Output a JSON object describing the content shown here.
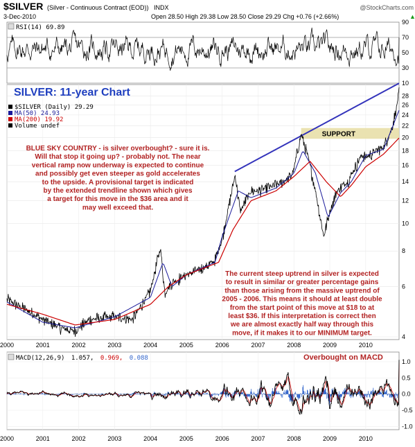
{
  "header": {
    "symbol": "$SILVER",
    "description": "(Silver - Continuous Contract (EOD))",
    "exchange": "INDX",
    "watermark": "@StockCharts.com",
    "date": "3-Dec-2010",
    "ohlc": "Open 28.50  High 29.38  Low 28.50  Close 29.29  Chg +0.76 (+2.66%)",
    "ohlc_arrow": "▲"
  },
  "rsi_panel": {
    "label": "RSI(14) 69.89",
    "ticks": [
      "90",
      "70",
      "50",
      "30",
      "10"
    ]
  },
  "main_panel": {
    "big_title": "SILVER: 11-year Chart",
    "legend": [
      {
        "text": "$SILVER (Daily) 29.29",
        "color": "#000000"
      },
      {
        "text": "MA(50) 24.93",
        "color": "#1a1a9a"
      },
      {
        "text": "MA(200) 19.92",
        "color": "#cc0000"
      },
      {
        "text": "Volume undef",
        "color": "#000000"
      }
    ],
    "ticks": [
      "28",
      "26",
      "24",
      "22",
      "20",
      "18",
      "16",
      "14",
      "12",
      "10",
      "8",
      "6",
      "4"
    ],
    "support_label": "SUPPORT",
    "annotation_top": [
      "BLUE SKY COUNTRY - is silver overbought? - sure it is.",
      "Will that stop it going up? - probably not. The near",
      "vertical ramp now underway is expected to continue",
      "and possibly get even steeper as gold accelerates",
      "to the upside. A provisional target is indicated",
      "by the extended trendline shown which gives",
      "a target for this move in the $36 area and it",
      "may well exceed that."
    ],
    "annotation_bottom": [
      "The current steep uptrend in silver is expected",
      "to result in similar or greater percentage gains",
      "than those arising from the massive uptrend of",
      "2005 - 2006. This means it should at least double",
      "from the start point of this move at $18 to at",
      "least $36. If this interpretation is correct then",
      "we are almost exactly half way through this",
      "move, if it makes it to our MINIMUM target."
    ],
    "x_labels": [
      "2000",
      "2001",
      "2002",
      "2003",
      "2004",
      "2005",
      "2006",
      "2007",
      "2008",
      "2009",
      "2010"
    ]
  },
  "macd_panel": {
    "label_prefix": "MACD(12,26,9)",
    "macd_value": "1.057,",
    "signal_value": "0.969,",
    "hist_value": "0.088",
    "note": "Overbought on MACD",
    "ticks": [
      "1.0",
      "0.5",
      "0.0",
      "-0.5",
      "-1.0"
    ],
    "x_labels": [
      "2000",
      "2001",
      "2002",
      "2003",
      "2004",
      "2005",
      "2006",
      "2007",
      "2008",
      "2009",
      "2010"
    ]
  },
  "colors": {
    "price": "#000000",
    "ma50": "#1a1a9a",
    "ma200": "#cc0000",
    "trendline": "#3333bb",
    "annotation": "#b22222",
    "support_band": "#e8dfa8",
    "title_blue": "#1f3fbf",
    "macd_signal": "#cc0000",
    "macd_hist": "#3366cc"
  },
  "chart_data": {
    "type": "line",
    "title": "SILVER: 11-year Chart",
    "xlabel": "",
    "ylabel": "",
    "ylim": [
      4,
      30
    ],
    "y_scale": "log",
    "x_range": [
      2000.0,
      2010.93
    ],
    "grid": true,
    "legend_placement": "top-left",
    "price_series": {
      "name": "$SILVER (Daily) 29.29",
      "x": [
        2000.0,
        2000.5,
        2001.0,
        2001.5,
        2001.9,
        2002.3,
        2003.0,
        2003.5,
        2004.0,
        2004.28,
        2004.4,
        2004.6,
        2005.0,
        2005.5,
        2005.8,
        2006.0,
        2006.36,
        2006.5,
        2006.8,
        2007.0,
        2007.5,
        2007.9,
        2008.0,
        2008.2,
        2008.4,
        2008.6,
        2008.83,
        2009.0,
        2009.2,
        2009.5,
        2009.9,
        2010.0,
        2010.3,
        2010.5,
        2010.7,
        2010.85,
        2010.93
      ],
      "values": [
        5.4,
        5.0,
        4.6,
        4.3,
        4.2,
        4.6,
        4.7,
        4.6,
        5.8,
        8.2,
        5.7,
        6.2,
        6.6,
        7.0,
        7.4,
        8.8,
        14.8,
        11.0,
        13.0,
        13.0,
        13.6,
        14.5,
        15.5,
        20.6,
        17.0,
        13.0,
        9.0,
        11.0,
        13.0,
        14.0,
        17.5,
        17.0,
        18.0,
        18.5,
        21.0,
        25.0,
        29.29
      ]
    },
    "ma50": {
      "name": "MA(50) 24.93",
      "x": [
        2000.0,
        2001.0,
        2001.9,
        2003.0,
        2004.0,
        2004.35,
        2004.6,
        2005.0,
        2005.8,
        2006.0,
        2006.45,
        2006.8,
        2007.5,
        2008.0,
        2008.25,
        2008.6,
        2008.95,
        2009.3,
        2009.6,
        2010.0,
        2010.5,
        2010.93
      ],
      "values": [
        5.3,
        4.5,
        4.3,
        4.7,
        5.5,
        7.3,
        6.0,
        6.6,
        7.3,
        9.0,
        13.0,
        12.3,
        13.3,
        15.0,
        18.0,
        15.0,
        10.5,
        12.8,
        14.0,
        17.3,
        18.2,
        24.93
      ]
    },
    "ma200": {
      "name": "MA(200) 19.92",
      "x": [
        2000.0,
        2001.0,
        2001.9,
        2003.0,
        2004.0,
        2004.5,
        2005.0,
        2005.9,
        2006.3,
        2006.8,
        2007.5,
        2008.0,
        2008.45,
        2008.9,
        2009.3,
        2009.6,
        2010.0,
        2010.5,
        2010.93
      ],
      "values": [
        5.2,
        4.8,
        4.4,
        4.6,
        5.2,
        6.0,
        6.6,
        7.3,
        9.5,
        12.0,
        13.0,
        14.6,
        16.5,
        14.0,
        12.4,
        13.6,
        15.8,
        17.5,
        19.92
      ]
    },
    "trendline": {
      "x": [
        2006.35,
        2010.93
      ],
      "values": [
        15.2,
        31.0
      ]
    },
    "support_band": [
      19.8,
      21.6
    ],
    "rsi": {
      "name": "RSI(14) 69.89",
      "ylim": [
        10,
        90
      ],
      "last": 69.89
    },
    "macd": {
      "name": "MACD(12,26,9)",
      "macd": 1.057,
      "signal": 0.969,
      "histogram": 0.088,
      "ylim": [
        -1.1,
        1.3
      ]
    }
  }
}
